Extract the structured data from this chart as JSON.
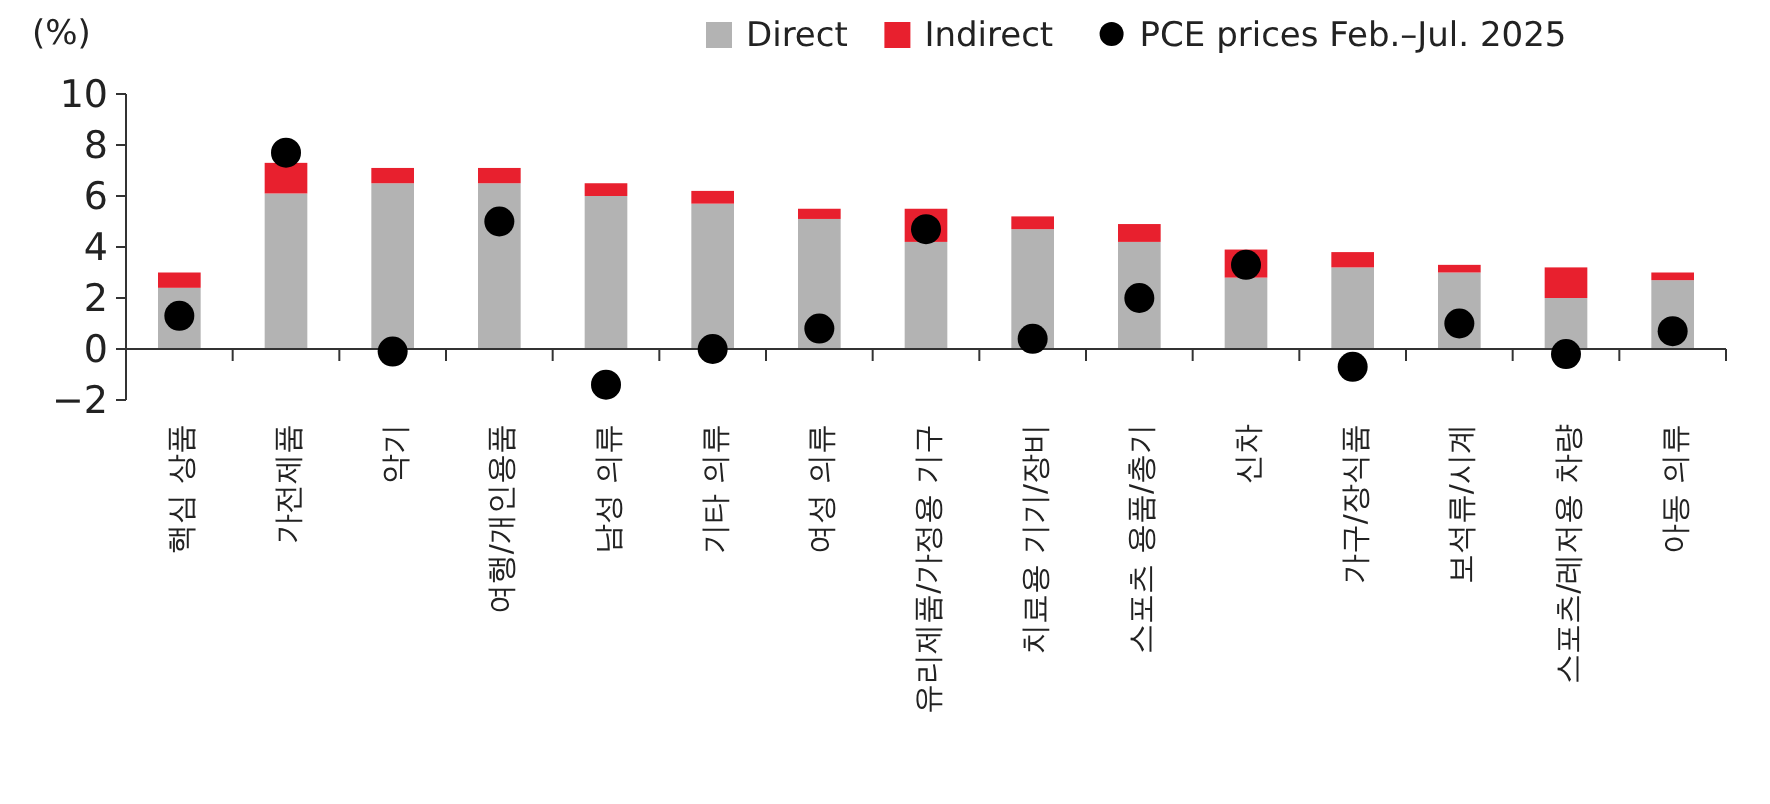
{
  "chart_data": {
    "type": "bar",
    "stacked": true,
    "ylabel": "(%)",
    "categories": [
      "핵심 상품",
      "가전제품",
      "악기",
      "여행/개인용품",
      "남성 의류",
      "기타 의류",
      "여성 의류",
      "유리제품/가정용 기구",
      "치료용 기기/장비",
      "스포츠 용품/총기",
      "신차",
      "가구/장식품",
      "보석류/시계",
      "스포츠/레저용 차량",
      "아동 의류"
    ],
    "series": [
      {
        "name": "Direct",
        "color": "#b3b3b3",
        "values": [
          2.4,
          6.1,
          6.5,
          6.5,
          6.0,
          5.7,
          5.1,
          4.2,
          4.7,
          4.2,
          2.8,
          3.2,
          3.0,
          2.0,
          2.7
        ]
      },
      {
        "name": "Indirect",
        "color": "#e8202e",
        "values": [
          0.6,
          1.2,
          0.6,
          0.6,
          0.5,
          0.5,
          0.4,
          1.3,
          0.5,
          0.7,
          1.1,
          0.6,
          0.3,
          1.2,
          0.3
        ]
      },
      {
        "name": "PCE prices Feb.–Jul. 2025",
        "type": "scatter",
        "color": "#000000",
        "values": [
          1.3,
          7.7,
          -0.1,
          5.0,
          -1.4,
          0.0,
          0.8,
          4.7,
          0.4,
          2.0,
          3.3,
          -0.7,
          1.0,
          -0.2,
          0.7
        ]
      }
    ],
    "ylim": [
      -2,
      10
    ],
    "yticks": [
      -2,
      0,
      2,
      4,
      6,
      8,
      10
    ],
    "grid": false,
    "legend": "top right",
    "marker": "circle"
  }
}
